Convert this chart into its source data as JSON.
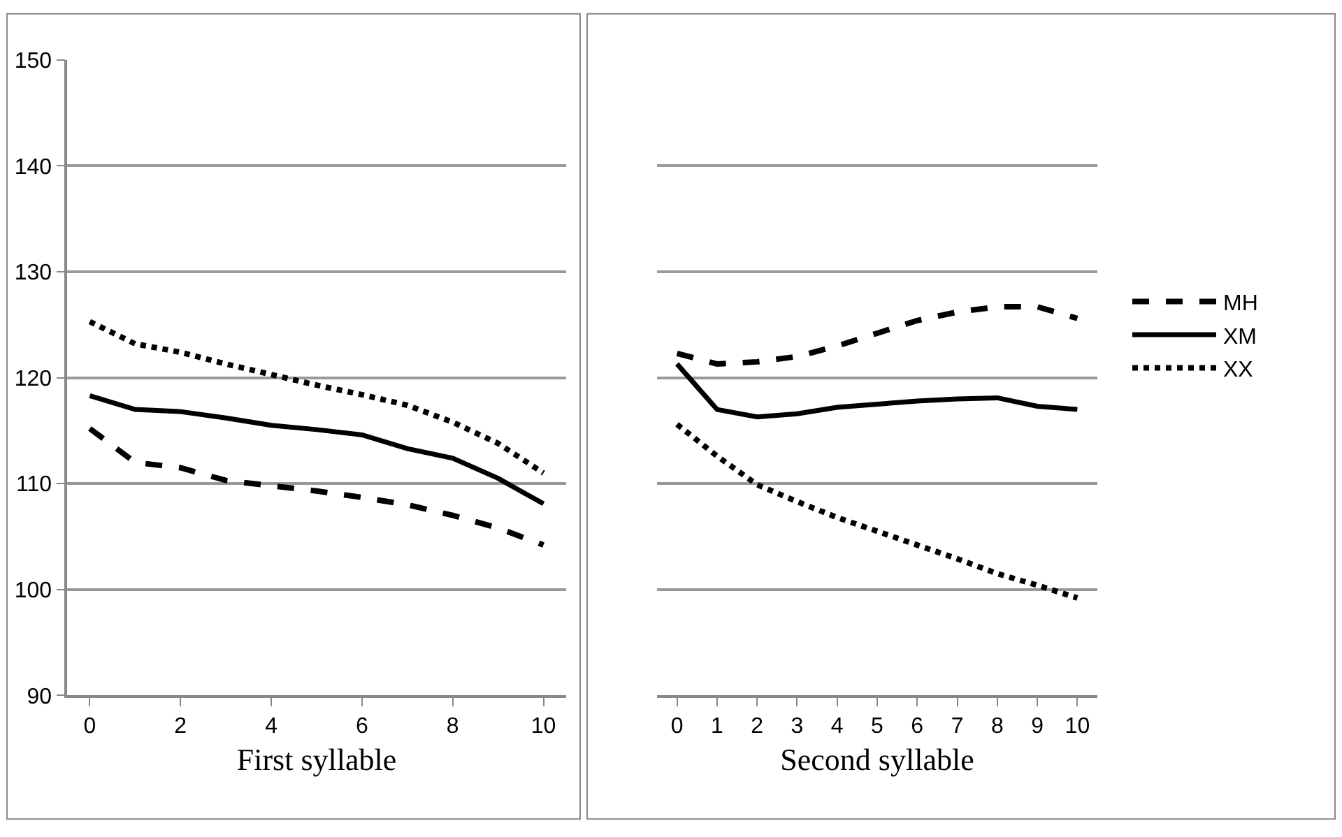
{
  "chart_data": [
    {
      "type": "line",
      "xlabel": "First syllable",
      "categories": [
        "0",
        null,
        "2",
        null,
        "4",
        null,
        "6",
        null,
        "8",
        null,
        "10"
      ],
      "ylim": [
        90,
        150
      ],
      "yticks": [
        90,
        100,
        110,
        120,
        130,
        140,
        150
      ],
      "grid": "y",
      "series": [
        {
          "color": "#000000",
          "line_style": "dashed",
          "values": [
            115.2,
            112,
            111.5,
            110.3,
            109.8,
            109.3,
            108.7,
            108,
            107,
            105.8,
            104.2
          ]
        },
        {
          "color": "#000000",
          "line_style": "solid",
          "values": [
            118.3,
            117,
            116.8,
            116.2,
            115.5,
            115.1,
            114.6,
            113.3,
            112.4,
            110.5,
            108.1
          ]
        },
        {
          "color": "#000000",
          "line_style": "dotted",
          "values": [
            125.3,
            123.2,
            122.4,
            121.3,
            120.3,
            119.3,
            118.4,
            117.4,
            115.8,
            113.8,
            111
          ]
        }
      ]
    },
    {
      "type": "line",
      "xlabel": "Second syllable",
      "categories": [
        "0",
        "1",
        "2",
        "3",
        "4",
        "5",
        "6",
        "7",
        "8",
        "9",
        "10"
      ],
      "ylim": [
        90,
        150
      ],
      "yticks": [
        90,
        100,
        110,
        120,
        130,
        140,
        150
      ],
      "tick_labels": "x",
      "grid": "y",
      "legend": "right",
      "series": [
        {
          "name": "MH",
          "color": "#000000",
          "line_style": "dashed",
          "values": [
            122.3,
            121.3,
            121.5,
            122,
            123,
            124.2,
            125.4,
            126.2,
            126.7,
            126.7,
            125.6
          ]
        },
        {
          "name": "XM",
          "color": "#000000",
          "line_style": "solid",
          "values": [
            121.3,
            117,
            116.3,
            116.6,
            117.2,
            117.5,
            117.8,
            118,
            118.1,
            117.3,
            117
          ]
        },
        {
          "name": "XX",
          "color": "#000000",
          "line_style": "dotted",
          "values": [
            115.6,
            112.6,
            109.9,
            108.3,
            106.8,
            105.5,
            104.2,
            102.9,
            101.5,
            100.4,
            99.2
          ]
        }
      ]
    }
  ]
}
